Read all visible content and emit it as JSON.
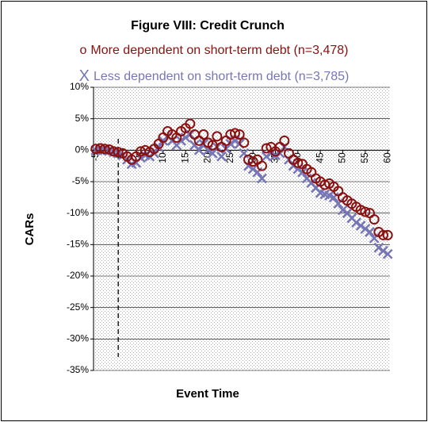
{
  "chart_data": {
    "type": "scatter",
    "title": "Figure VIII: Credit Crunch",
    "x_label": "Event Time",
    "y_label": "CARs",
    "x": [
      -5,
      -4,
      -3,
      -2,
      -1,
      0,
      1,
      2,
      3,
      4,
      5,
      6,
      7,
      8,
      9,
      10,
      11,
      12,
      13,
      14,
      15,
      16,
      17,
      18,
      19,
      20,
      21,
      22,
      23,
      24,
      25,
      26,
      27,
      28,
      29,
      30,
      31,
      32,
      33,
      34,
      35,
      36,
      37,
      38,
      39,
      40,
      41,
      42,
      43,
      44,
      45,
      46,
      47,
      48,
      49,
      50,
      51,
      52,
      53,
      54,
      55,
      56,
      57,
      58,
      59,
      60
    ],
    "xlim": [
      -5.5,
      60.5
    ],
    "xticks": [
      -5,
      0,
      5,
      10,
      15,
      20,
      25,
      30,
      35,
      40,
      45,
      50,
      55,
      60
    ],
    "ylim": [
      -35,
      10
    ],
    "yticks": [
      {
        "value": -35,
        "label": "-35%"
      },
      {
        "value": -30,
        "label": "-30%"
      },
      {
        "value": -25,
        "label": "-25%"
      },
      {
        "value": -20,
        "label": "-20%"
      },
      {
        "value": -15,
        "label": "-15%"
      },
      {
        "value": -10,
        "label": "-10%"
      },
      {
        "value": -5,
        "label": "-5%"
      },
      {
        "value": 0,
        "label": "0%"
      },
      {
        "value": 5,
        "label": "5%"
      },
      {
        "value": 10,
        "label": "10%"
      }
    ],
    "grid": true,
    "event_line": 0,
    "series": [
      {
        "name": "Less dependent on short-term debt (n=3,785)",
        "marker": "X",
        "color": "#7676b6",
        "values": [
          0,
          0,
          0,
          -0.1,
          -0.3,
          -0.5,
          -0.8,
          -1.5,
          -2.2,
          -2.0,
          -1.2,
          -0.8,
          -1.0,
          -0.5,
          0.5,
          1.5,
          2.2,
          1.5,
          0.8,
          1.5,
          2.0,
          2.5,
          0.8,
          0.0,
          1.0,
          0.0,
          -0.5,
          0.5,
          -1.0,
          0.2,
          1.0,
          1.5,
          1.0,
          -0.5,
          -2.5,
          -3.0,
          -3.5,
          -4.5,
          -1.0,
          -0.5,
          -0.8,
          -0.5,
          0.5,
          -1.5,
          -2.5,
          -3.0,
          -3.5,
          -4.5,
          -5.2,
          -6.0,
          -6.8,
          -7.0,
          -7.2,
          -7.5,
          -8.5,
          -9.5,
          -10.0,
          -10.8,
          -11.5,
          -12.0,
          -12.5,
          -13.0,
          -14.0,
          -15.5,
          -16.0,
          -16.5
        ]
      },
      {
        "name": "More dependent on short-term debt (n=3,478)",
        "marker": "o",
        "color": "#8b1010",
        "values": [
          0.2,
          0.3,
          0.2,
          0.1,
          -0.2,
          -0.3,
          -0.5,
          -1.0,
          -1.5,
          -1.0,
          -0.2,
          0.0,
          -0.3,
          0.2,
          1.0,
          2.0,
          3.0,
          2.5,
          2.0,
          3.0,
          3.5,
          4.2,
          2.5,
          1.5,
          2.5,
          1.2,
          0.8,
          2.2,
          0.5,
          1.5,
          2.5,
          2.7,
          2.5,
          1.2,
          -1.5,
          -1.8,
          -1.5,
          -2.5,
          0.3,
          0.5,
          -0.2,
          0.5,
          1.5,
          -0.5,
          -1.5,
          -2.0,
          -2.2,
          -3.0,
          -3.5,
          -4.5,
          -5.0,
          -5.5,
          -5.3,
          -5.8,
          -6.5,
          -7.5,
          -8.0,
          -8.5,
          -9.0,
          -9.5,
          -9.8,
          -10.0,
          -11.0,
          -13.0,
          -13.5,
          -13.5
        ]
      }
    ]
  }
}
